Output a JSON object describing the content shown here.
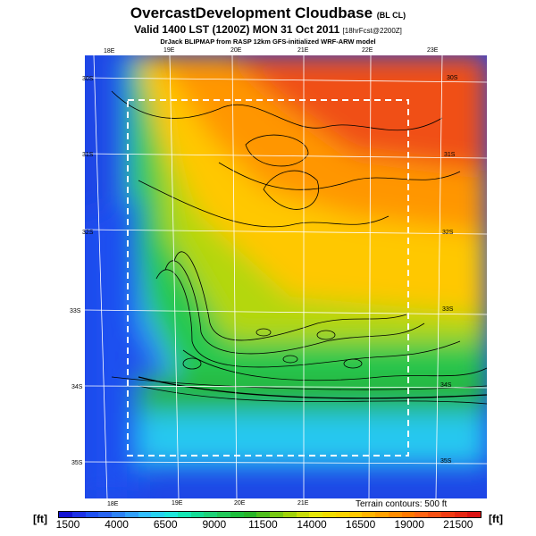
{
  "title": "OvercastDevelopment Cloudbase",
  "title_tag": "(BL CL)",
  "subtitle": "Valid 1400 LST (1200Z) MON 31 Oct 2011",
  "subtitle_tag": "[18hrFcst@2200Z]",
  "credit": "DrJack BLIPMAP from RASP 12km GFS-initialized WRF-ARW model",
  "lon_top": [
    "18E",
    "19E",
    "20E",
    "21E",
    "22E",
    "23E"
  ],
  "lon_bottom": [
    "18E",
    "19E",
    "20E",
    "21E"
  ],
  "lat_left": [
    "30S",
    "31S",
    "32S",
    "33S",
    "34S",
    "35S"
  ],
  "lat_right": [
    "30S",
    "31S",
    "32S",
    "33S",
    "34S",
    "35S"
  ],
  "terrain_note": "Terrain contours: 500 ft",
  "unit_left": "[ft]",
  "unit_right": "[ft]",
  "colorbar_labels": [
    "1500",
    "4000",
    "6500",
    "9000",
    "11500",
    "14000",
    "16500",
    "19000",
    "21500"
  ],
  "colorbar_colors": [
    "#1414d2",
    "#1e32e6",
    "#1e50f0",
    "#2864f0",
    "#2d82f5",
    "#32a0fa",
    "#32beff",
    "#28d2f0",
    "#1ee6dc",
    "#14e6b4",
    "#14dc96",
    "#1ed278",
    "#23c85a",
    "#1ebe3c",
    "#28b428",
    "#50be1e",
    "#78c814",
    "#a0d20a",
    "#c8dc0a",
    "#e6e60a",
    "#f0dc00",
    "#fad200",
    "#ffc800",
    "#ffb400",
    "#ffa000",
    "#ff8c00",
    "#ff7800",
    "#ff6414",
    "#f55014",
    "#f03c14",
    "#e62814",
    "#dc1414"
  ]
}
